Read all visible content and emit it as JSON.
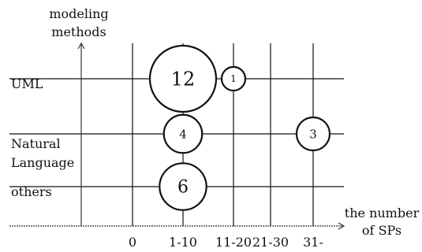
{
  "chart_data": {
    "type": "scatter",
    "title": "",
    "xlabel_lines": [
      "the number",
      "of SPs"
    ],
    "ylabel_lines": [
      "modeling",
      "methods"
    ],
    "x_categories": [
      "0",
      "1-10",
      "11-20",
      "21-30",
      "31-"
    ],
    "y_categories": [
      "UML",
      "Natural Language",
      "others"
    ],
    "y_label_display": {
      "UML": [
        "UML"
      ],
      "Natural Language": [
        "Natural",
        "Language"
      ],
      "others": [
        "others"
      ]
    },
    "points": [
      {
        "x": "1-10",
        "y": "UML",
        "value": 12,
        "label": "12"
      },
      {
        "x": "11-20",
        "y": "UML",
        "value": 1,
        "label": "1"
      },
      {
        "x": "1-10",
        "y": "Natural Language",
        "value": 4,
        "label": "4"
      },
      {
        "x": "31-",
        "y": "Natural Language",
        "value": 3,
        "label": "3"
      },
      {
        "x": "1-10",
        "y": "others",
        "value": 6,
        "label": "6"
      }
    ],
    "grid": true,
    "colors": {
      "stroke": "#111111",
      "axis": "#333333",
      "bubble_fill": "#ffffff"
    }
  }
}
